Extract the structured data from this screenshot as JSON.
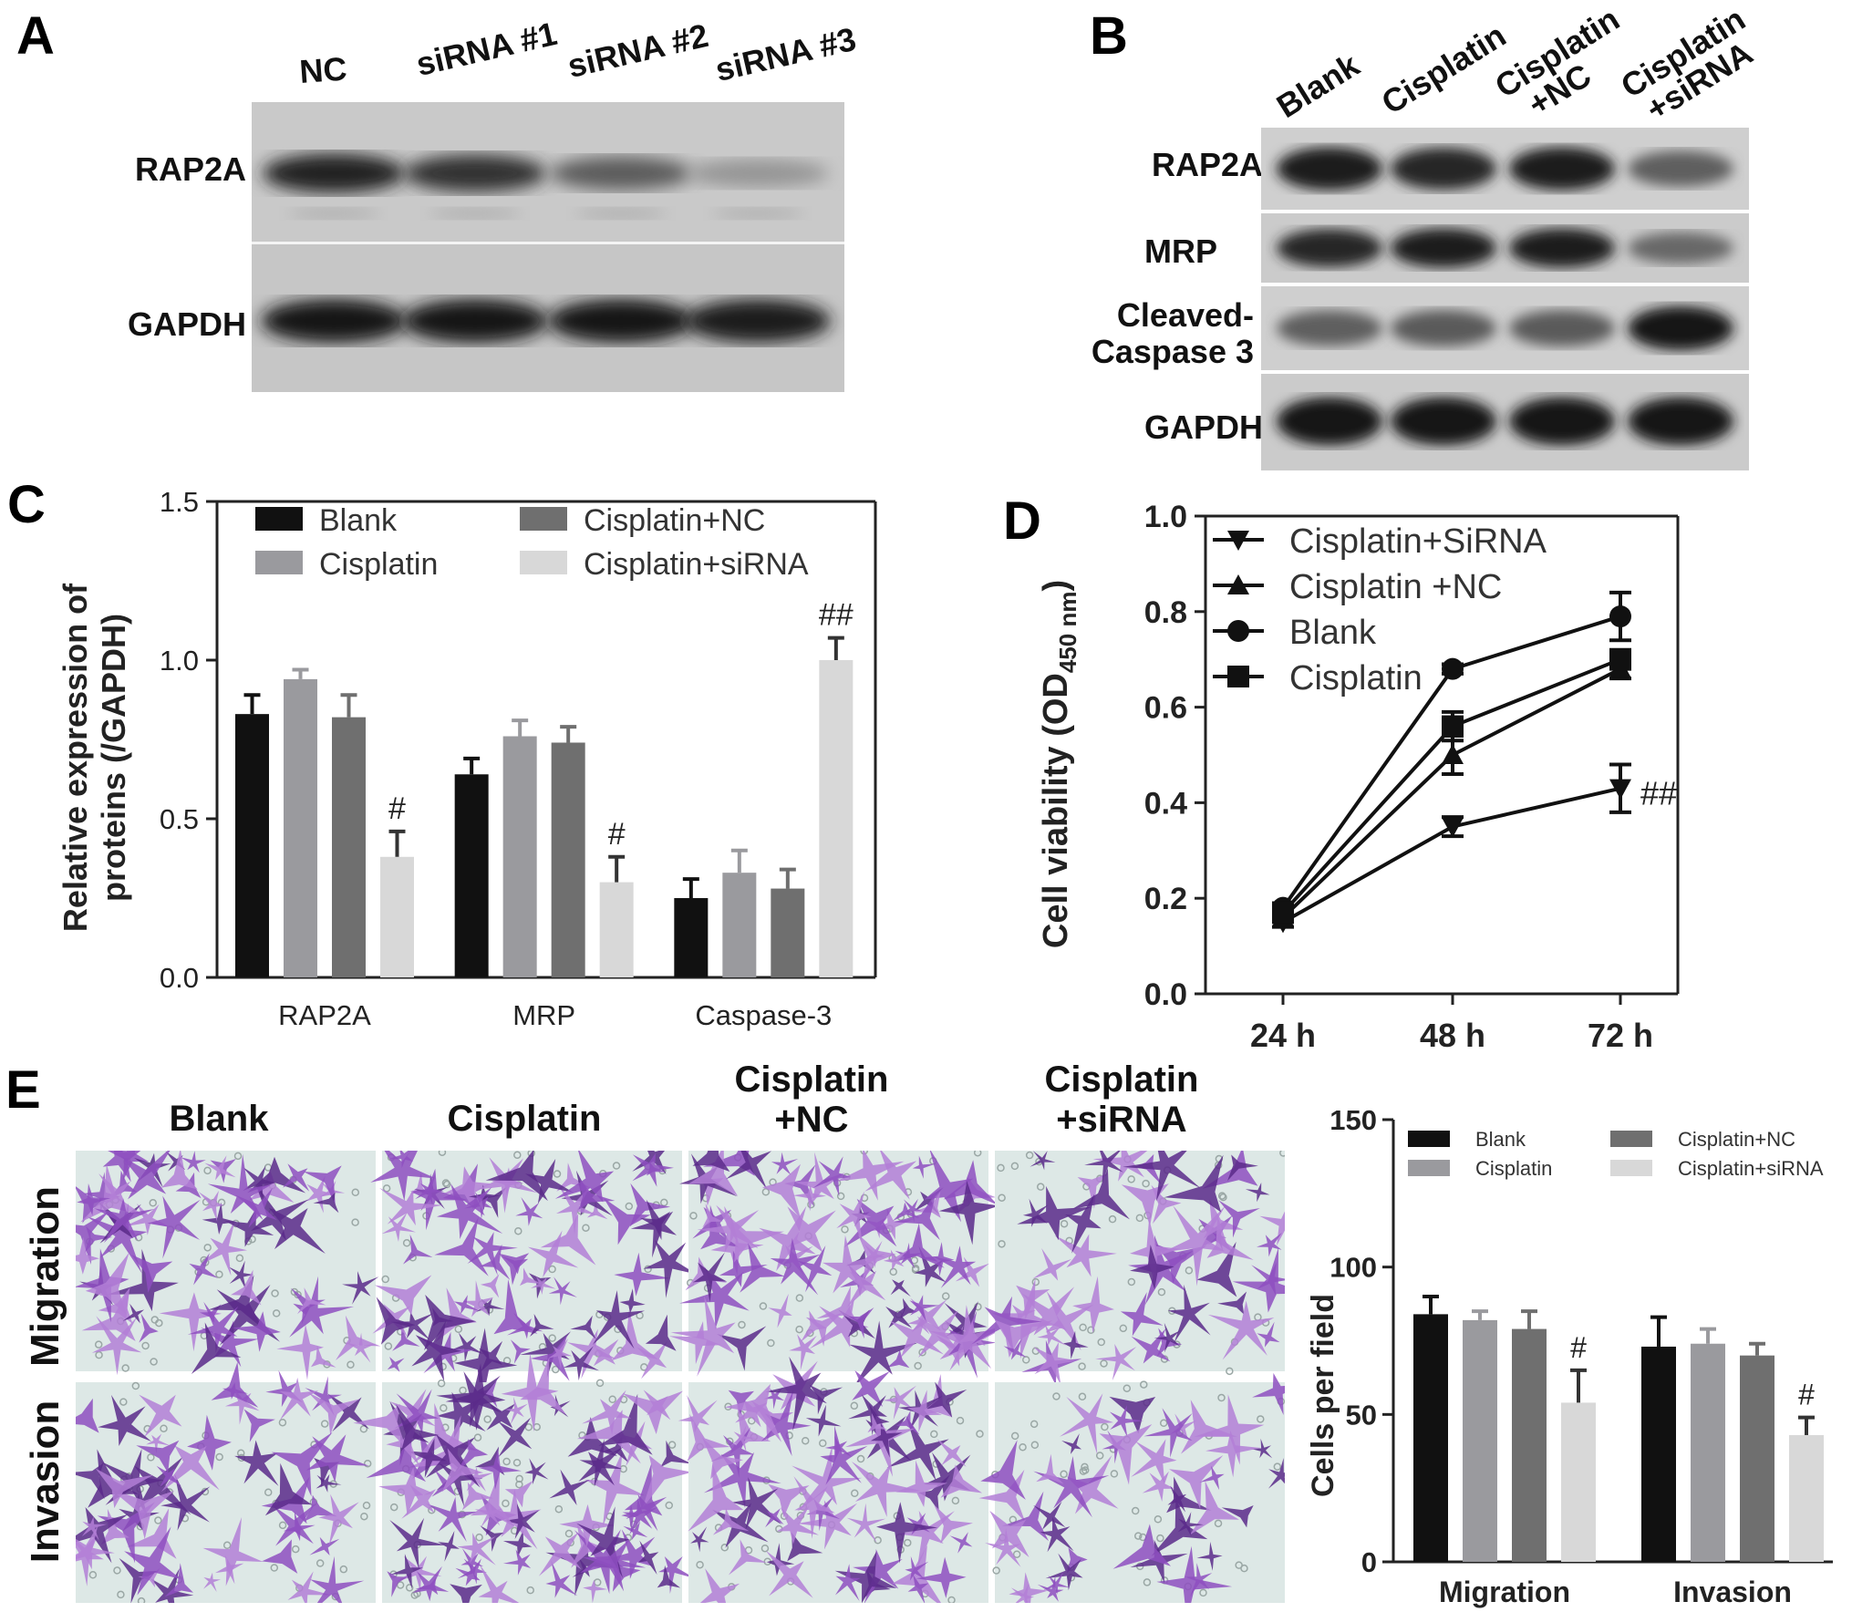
{
  "panel_a": {
    "letter": "A",
    "lanes": [
      "NC",
      "siRNA #1",
      "siRNA #2",
      "siRNA #3"
    ],
    "rows": [
      "RAP2A",
      "GAPDH"
    ],
    "band_intensity": {
      "RAP2A": [
        0.95,
        0.85,
        0.62,
        0.3
      ],
      "GAPDH": [
        1,
        1,
        1,
        0.95
      ]
    }
  },
  "panel_b": {
    "letter": "B",
    "lanes": [
      "Blank",
      "Cisplatin",
      "Cisplatin +NC",
      "Cisplatin +siRNA"
    ],
    "rows": [
      "RAP2A",
      "MRP",
      "Cleaved- Caspase 3",
      "GAPDH"
    ],
    "band_intensity": {
      "RAP2A": [
        0.95,
        0.9,
        0.95,
        0.6
      ],
      "MRP": [
        0.9,
        0.95,
        0.95,
        0.55
      ],
      "Cleaved-Caspase 3": [
        0.6,
        0.62,
        0.62,
        1
      ],
      "GAPDH": [
        1,
        1,
        1,
        1
      ]
    }
  },
  "panel_c": {
    "letter": "C",
    "chart_data": {
      "type": "bar",
      "categories": [
        "RAP2A",
        "MRP",
        "Caspase-3"
      ],
      "series": [
        {
          "name": "Blank",
          "values": [
            0.83,
            0.64,
            0.25
          ],
          "errors": [
            0.06,
            0.05,
            0.06
          ],
          "color": "#111111"
        },
        {
          "name": "Cisplatin",
          "values": [
            0.94,
            0.76,
            0.33
          ],
          "errors": [
            0.03,
            0.05,
            0.07
          ],
          "color": "#9a9a9e"
        },
        {
          "name": "Cisplatin+NC",
          "values": [
            0.82,
            0.74,
            0.28
          ],
          "errors": [
            0.07,
            0.05,
            0.06
          ],
          "color": "#6f6f6f"
        },
        {
          "name": "Cisplatin+siRNA",
          "values": [
            0.38,
            0.3,
            1.0
          ],
          "errors": [
            0.08,
            0.08,
            0.07
          ],
          "color": "#d8d8d8"
        }
      ],
      "annotations": [
        "#",
        "#",
        "##"
      ],
      "ylabel_line1": "Relative expression of",
      "ylabel_line2": "proteins (/GAPDH)",
      "ylim": [
        0,
        1.5
      ],
      "yticks": [
        "0.0",
        "0.5",
        "1.0",
        "1.5"
      ],
      "legend_placement": "top"
    }
  },
  "panel_d": {
    "letter": "D",
    "chart_data": {
      "type": "line",
      "x": [
        "24 h",
        "48 h",
        "72 h"
      ],
      "series": [
        {
          "name": "Cisplatin+SiRNA",
          "marker": "triangle-down",
          "values": [
            0.15,
            0.35,
            0.43
          ],
          "errors": [
            0.01,
            0.02,
            0.05
          ]
        },
        {
          "name": "Cisplatin +NC",
          "marker": "triangle-up",
          "values": [
            0.16,
            0.5,
            0.68
          ],
          "errors": [
            0.01,
            0.04,
            0.02
          ]
        },
        {
          "name": "Blank",
          "marker": "circle",
          "values": [
            0.18,
            0.68,
            0.79
          ],
          "errors": [
            0.01,
            0.01,
            0.05
          ]
        },
        {
          "name": "Cisplatin",
          "marker": "square",
          "values": [
            0.17,
            0.56,
            0.7
          ],
          "errors": [
            0.01,
            0.03,
            0.02
          ]
        }
      ],
      "annotation": "##",
      "ylabel_main": "Cell viability (OD",
      "ylabel_sub": "450 nm",
      "ylabel_close": ")",
      "ylim": [
        0,
        1.0
      ],
      "yticks": [
        "0.0",
        "0.2",
        "0.4",
        "0.6",
        "0.8",
        "1.0"
      ],
      "legend_placement": "top-left"
    }
  },
  "panel_e": {
    "letter": "E",
    "columns": [
      "Blank",
      "Cisplatin",
      "Cisplatin\n+NC",
      "Cisplatin\n+siRNA"
    ],
    "rows": [
      "Migration",
      "Invasion"
    ],
    "chart_data": {
      "type": "bar",
      "categories": [
        "Migration",
        "Invasion"
      ],
      "series": [
        {
          "name": "Blank",
          "values": [
            84,
            73
          ],
          "errors": [
            6,
            10
          ],
          "color": "#111111"
        },
        {
          "name": "Cisplatin",
          "values": [
            82,
            74
          ],
          "errors": [
            3,
            5
          ],
          "color": "#9a9a9e"
        },
        {
          "name": "Cisplatin+NC",
          "values": [
            79,
            70
          ],
          "errors": [
            6,
            4
          ],
          "color": "#6f6f6f"
        },
        {
          "name": "Cisplatin+siRNA",
          "values": [
            54,
            43
          ],
          "errors": [
            11,
            6
          ],
          "color": "#d8d8d8"
        }
      ],
      "annotations": [
        "#",
        "#"
      ],
      "ylabel": "Cells per field",
      "ylim": [
        0,
        150
      ],
      "yticks": [
        "0",
        "50",
        "100",
        "150"
      ],
      "legend_placement": "top"
    }
  }
}
